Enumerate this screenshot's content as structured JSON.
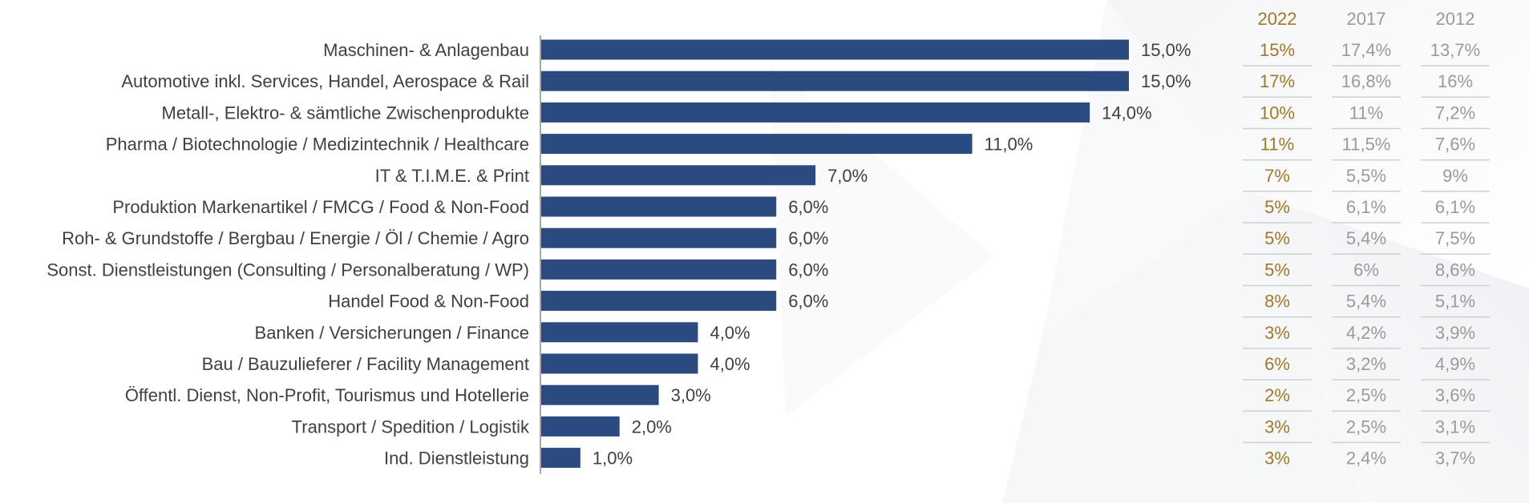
{
  "chart_data": {
    "type": "bar",
    "orientation": "horizontal",
    "categories": [
      "Maschinen- & Anlagenbau",
      "Automotive inkl. Services, Handel, Aerospace & Rail",
      "Metall-, Elektro- & sämtliche Zwischenprodukte",
      "Pharma / Biotechnologie / Medizintechnik / Healthcare",
      "IT & T.I.M.E. & Print",
      "Produktion Markenartikel / FMCG / Food & Non-Food ",
      "Roh- & Grundstoffe / Bergbau / Energie / Öl / Chemie / Agro",
      "Sonst. Dienstleistungen (Consulting / Personalberatung / WP)",
      "Handel Food & Non-Food",
      "Banken / Versicherungen / Finance",
      "Bau / Bauzulieferer / Facility Management",
      "Öffentl. Dienst, Non-Profit, Tourismus und Hotellerie",
      "Transport / Spedition / Logistik",
      "Ind. Dienstleistung"
    ],
    "values": [
      15.0,
      15.0,
      14.0,
      11.0,
      7.0,
      6.0,
      6.0,
      6.0,
      6.0,
      4.0,
      4.0,
      3.0,
      2.0,
      1.0
    ],
    "value_labels": [
      "15,0%",
      "15,0%",
      "14,0%",
      "11,0%",
      "7,0%",
      "6,0%",
      "6,0%",
      "6,0%",
      "6,0%",
      "4,0%",
      "4,0%",
      "3,0%",
      "2,0%",
      "1,0%"
    ],
    "xlim": [
      0,
      15
    ],
    "bar_color": "#2B4A80",
    "label_color": "#404040",
    "table": {
      "columns": [
        {
          "header": "2022",
          "color": "#A0782A",
          "values": [
            "15%",
            "17%",
            "10%",
            "11%",
            "7%",
            "5%",
            "5%",
            "5%",
            "8%",
            "3%",
            "6%",
            "2%",
            "3%",
            "3%"
          ]
        },
        {
          "header": "2017",
          "color": "#9A9A9A",
          "values": [
            "17,4%",
            "16,8%",
            "11%",
            "11,5%",
            "5,5%",
            "6,1%",
            "5,4%",
            "6%",
            "5,4%",
            "4,2%",
            "3,2%",
            "2,5%",
            "2,5%",
            "2,4%"
          ]
        },
        {
          "header": "2012",
          "color": "#9A9A9A",
          "values": [
            "13,7%",
            "16%",
            "7,2%",
            "7,6%",
            "9%",
            "6,1%",
            "7,5%",
            "8,6%",
            "5,1%",
            "3,9%",
            "4,9%",
            "3,6%",
            "3,1%",
            "3,7%"
          ]
        }
      ],
      "separator_color": "#D0D0D0"
    }
  }
}
